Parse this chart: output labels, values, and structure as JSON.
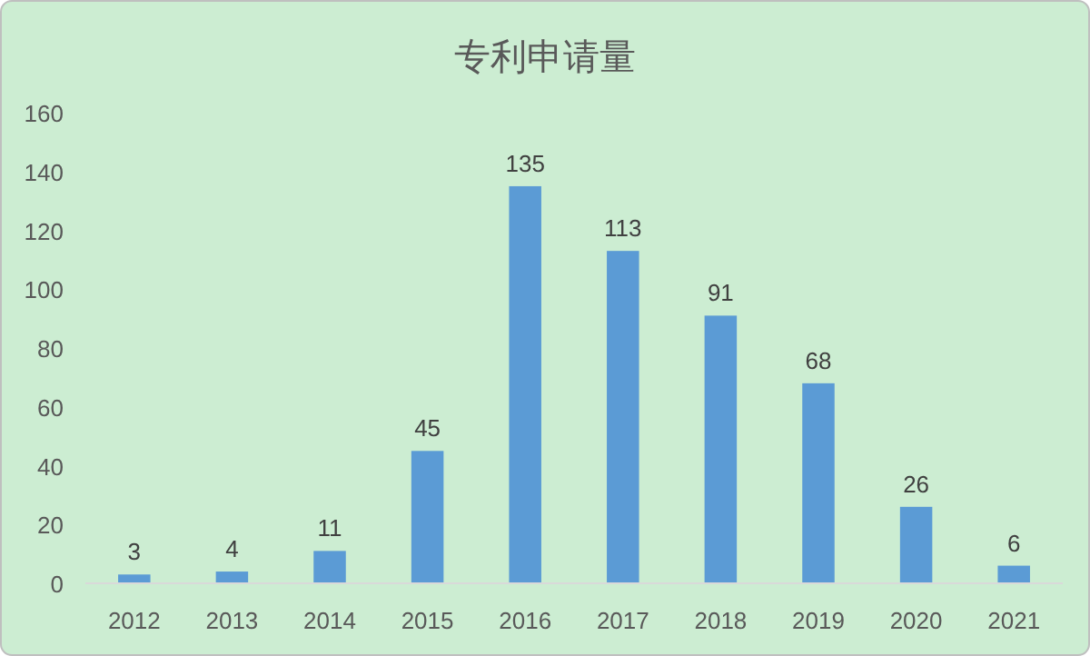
{
  "chart_data": {
    "type": "bar",
    "title": "专利申请量",
    "categories": [
      "2012",
      "2013",
      "2014",
      "2015",
      "2016",
      "2017",
      "2018",
      "2019",
      "2020",
      "2021"
    ],
    "values": [
      3,
      4,
      11,
      45,
      135,
      113,
      91,
      68,
      26,
      6
    ],
    "color": "#5b9bd5",
    "ylim": [
      0,
      160
    ],
    "yticks": [
      0,
      20,
      40,
      60,
      80,
      100,
      120,
      140,
      160
    ],
    "grid": false,
    "data_labels": true
  }
}
